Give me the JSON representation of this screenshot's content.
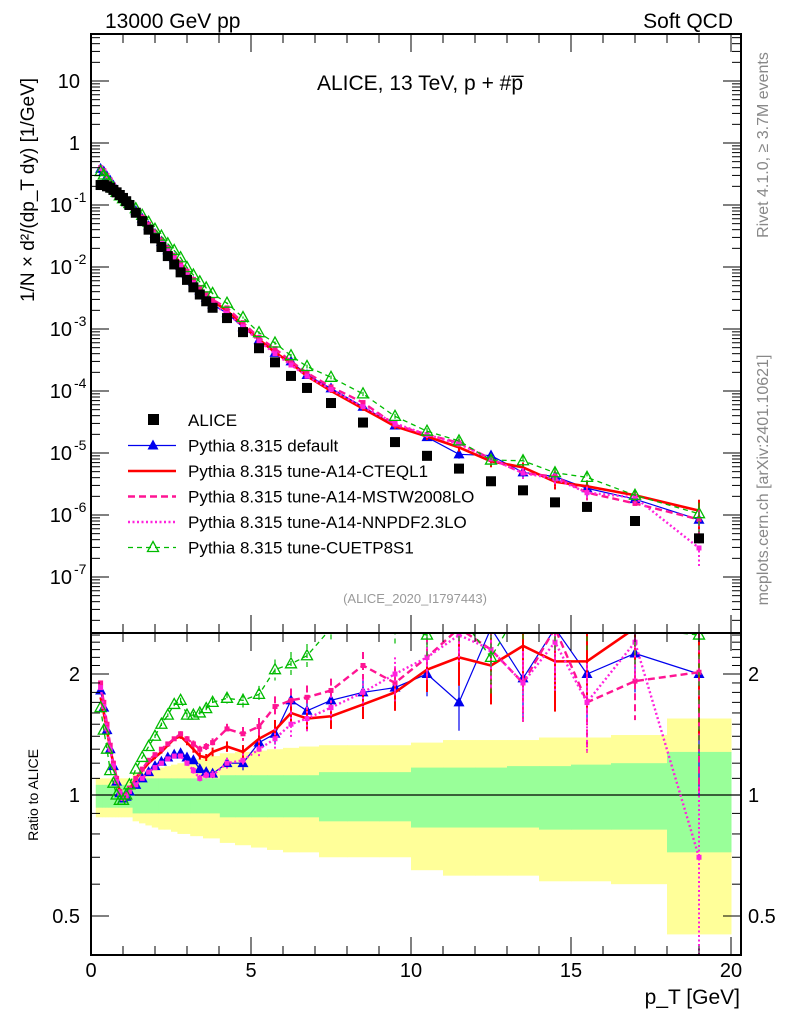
{
  "header": {
    "left": "13000 GeV pp",
    "right": "Soft QCD"
  },
  "side_texts": {
    "rivet": "Rivet 4.1.0, ≥ 3.7M events",
    "mcplots": "mcplots.cern.ch [arXiv:2401.10621]"
  },
  "chart_data": {
    "type": "line",
    "title": "ALICE, 13 TeV, p + #bar{p}",
    "title_display": "ALICE, 13 TeV, p + #p̅",
    "analysis_id": "(ALICE_2020_I1797443)",
    "xlabel": "p_T [GeV]",
    "ylabel": "1/N × d²/(dp_T dy) [1/GeV]",
    "ratio_ylabel": "Ratio to ALICE",
    "xlim": [
      0,
      20.35
    ],
    "ylim": [
      1.2e-08,
      55
    ],
    "ratio_ylim": [
      0.4,
      2.53
    ],
    "yscale": "log",
    "x_ticks": [
      0,
      5,
      10,
      15,
      20
    ],
    "y_ticks": [
      {
        "v": 10,
        "label": "10"
      },
      {
        "v": 1,
        "label": "1"
      },
      {
        "v": 0.1,
        "label": "10",
        "exp": "-1"
      },
      {
        "v": 0.01,
        "label": "10",
        "exp": "-2"
      },
      {
        "v": 0.001,
        "label": "10",
        "exp": "-3"
      },
      {
        "v": 0.0001,
        "label": "10",
        "exp": "-4"
      },
      {
        "v": 1e-05,
        "label": "10",
        "exp": "-5"
      },
      {
        "v": 1e-06,
        "label": "10",
        "exp": "-6"
      },
      {
        "v": 1e-07,
        "label": "10",
        "exp": "-7"
      }
    ],
    "ratio_ticks": [
      {
        "v": 2,
        "label": "2"
      },
      {
        "v": 1,
        "label": "1"
      },
      {
        "v": 0.5,
        "label": "0.5"
      }
    ],
    "legend_position": "bottom-left",
    "x": [
      0.3,
      0.4,
      0.5,
      0.6,
      0.7,
      0.8,
      0.9,
      1.0,
      1.1,
      1.2,
      1.4,
      1.6,
      1.8,
      2.0,
      2.2,
      2.4,
      2.6,
      2.8,
      3.0,
      3.2,
      3.4,
      3.6,
      3.8,
      4.25,
      4.75,
      5.25,
      5.75,
      6.25,
      6.75,
      7.5,
      8.5,
      9.5,
      10.5,
      11.5,
      12.5,
      13.5,
      14.5,
      15.5,
      17,
      19
    ],
    "data": {
      "name": "ALICE",
      "color": "#000000",
      "values": [
        0.21,
        0.21,
        0.2,
        0.19,
        0.175,
        0.16,
        0.145,
        0.13,
        0.115,
        0.1,
        0.075,
        0.055,
        0.04,
        0.029,
        0.021,
        0.015,
        0.011,
        0.0082,
        0.0062,
        0.0047,
        0.0036,
        0.0028,
        0.0022,
        0.0015,
        0.00089,
        0.00049,
        0.00029,
        0.000175,
        0.000112,
        6.4e-05,
        3.1e-05,
        1.5e-05,
        9e-06,
        5.6e-06,
        3.5e-06,
        2.5e-06,
        1.6e-06,
        1.35e-06,
        8e-07,
        4.2e-07
      ]
    },
    "uncertainty_bands": {
      "inner": {
        "color": "#99ff99",
        "hi": [
          1.06,
          1.06,
          1.06,
          1.06,
          1.06,
          1.06,
          1.06,
          1.06,
          1.06,
          1.06,
          1.1,
          1.1,
          1.1,
          1.1,
          1.1,
          1.1,
          1.1,
          1.1,
          1.1,
          1.1,
          1.1,
          1.1,
          1.1,
          1.12,
          1.12,
          1.12,
          1.12,
          1.12,
          1.12,
          1.14,
          1.14,
          1.14,
          1.17,
          1.17,
          1.17,
          1.18,
          1.18,
          1.19,
          1.2,
          1.28
        ],
        "lo": [
          0.93,
          0.93,
          0.93,
          0.93,
          0.93,
          0.93,
          0.93,
          0.93,
          0.93,
          0.93,
          0.9,
          0.9,
          0.9,
          0.9,
          0.9,
          0.9,
          0.9,
          0.9,
          0.9,
          0.9,
          0.9,
          0.9,
          0.9,
          0.88,
          0.88,
          0.88,
          0.88,
          0.88,
          0.88,
          0.86,
          0.86,
          0.86,
          0.83,
          0.83,
          0.83,
          0.83,
          0.82,
          0.82,
          0.82,
          0.72
        ]
      },
      "outer": {
        "color": "#ffff99",
        "hi": [
          1.1,
          1.1,
          1.1,
          1.1,
          1.1,
          1.1,
          1.1,
          1.1,
          1.1,
          1.1,
          1.13,
          1.14,
          1.15,
          1.16,
          1.17,
          1.18,
          1.19,
          1.2,
          1.21,
          1.22,
          1.23,
          1.24,
          1.25,
          1.27,
          1.28,
          1.29,
          1.3,
          1.31,
          1.32,
          1.33,
          1.33,
          1.33,
          1.35,
          1.37,
          1.37,
          1.37,
          1.39,
          1.39,
          1.41,
          1.55
        ],
        "lo": [
          0.88,
          0.88,
          0.88,
          0.88,
          0.88,
          0.88,
          0.88,
          0.88,
          0.88,
          0.88,
          0.86,
          0.85,
          0.84,
          0.83,
          0.82,
          0.82,
          0.81,
          0.8,
          0.8,
          0.79,
          0.79,
          0.78,
          0.78,
          0.76,
          0.75,
          0.74,
          0.73,
          0.72,
          0.72,
          0.7,
          0.7,
          0.7,
          0.65,
          0.63,
          0.63,
          0.63,
          0.61,
          0.61,
          0.6,
          0.45
        ]
      }
    },
    "mc_rel_error": [
      0,
      0,
      0,
      0,
      0,
      0,
      0,
      0,
      0,
      0,
      0,
      0,
      0,
      0.01,
      0.01,
      0.01,
      0.01,
      0.015,
      0.015,
      0.02,
      0.02,
      0.02,
      0.025,
      0.03,
      0.04,
      0.05,
      0.06,
      0.07,
      0.07,
      0.07,
      0.08,
      0.1,
      0.12,
      0.15,
      0.2,
      0.2,
      0.25,
      0.25,
      0.2,
      0.5
    ],
    "series": [
      {
        "name": "Pythia 8.315 default",
        "color": "#0000ee",
        "style": "solid",
        "width": 1.2,
        "marker": "triangle-filled",
        "ratio": [
          1.82,
          1.65,
          1.45,
          1.3,
          1.18,
          1.08,
          1.01,
          0.98,
          0.99,
          1.02,
          1.06,
          1.1,
          1.14,
          1.18,
          1.21,
          1.24,
          1.26,
          1.27,
          1.24,
          1.22,
          1.16,
          1.14,
          1.13,
          1.2,
          1.2,
          1.35,
          1.42,
          1.72,
          1.62,
          1.72,
          1.8,
          1.85,
          2.0,
          1.7,
          2.6,
          1.95,
          2.6,
          2.0,
          2.25,
          2.0
        ]
      },
      {
        "name": "Pythia 8.315 tune-A14-CTEQL1",
        "color": "#ff0000",
        "style": "solid",
        "width": 2.6,
        "marker": "none",
        "ratio": [
          1.75,
          1.6,
          1.45,
          1.3,
          1.2,
          1.1,
          1.02,
          0.99,
          1.0,
          1.03,
          1.1,
          1.15,
          1.2,
          1.24,
          1.28,
          1.33,
          1.38,
          1.4,
          1.35,
          1.3,
          1.25,
          1.24,
          1.28,
          1.32,
          1.28,
          1.38,
          1.45,
          1.6,
          1.55,
          1.57,
          1.68,
          1.8,
          2.05,
          2.2,
          2.1,
          2.35,
          2.15,
          2.15,
          2.6,
          2.8
        ]
      },
      {
        "name": "Pythia 8.315 tune-A14-MSTW2008LO",
        "color": "#ff1493",
        "style": "dashed",
        "width": 2.4,
        "marker": "square-small",
        "ratio": [
          1.9,
          1.7,
          1.5,
          1.33,
          1.2,
          1.1,
          1.02,
          0.99,
          1.0,
          1.04,
          1.1,
          1.16,
          1.22,
          1.26,
          1.3,
          1.34,
          1.38,
          1.42,
          1.38,
          1.34,
          1.3,
          1.32,
          1.35,
          1.46,
          1.42,
          1.48,
          1.66,
          1.72,
          1.75,
          1.82,
          2.1,
          1.9,
          2.2,
          2.6,
          2.3,
          1.9,
          2.6,
          1.7,
          1.92,
          2.02
        ]
      },
      {
        "name": "Pythia 8.315 tune-A14-NNPDF2.3LO",
        "color": "#ff22dd",
        "style": "dotted",
        "width": 2.4,
        "marker": "square-small",
        "ratio": [
          1.85,
          1.66,
          1.46,
          1.3,
          1.18,
          1.08,
          1.01,
          0.98,
          0.99,
          1.02,
          1.06,
          1.1,
          1.14,
          1.17,
          1.2,
          1.23,
          1.25,
          1.25,
          1.2,
          1.15,
          1.1,
          1.12,
          1.12,
          1.2,
          1.22,
          1.3,
          1.38,
          1.5,
          1.55,
          1.65,
          1.8,
          2.0,
          2.2,
          2.5,
          2.3,
          1.9,
          2.4,
          1.7,
          2.4,
          0.7
        ]
      },
      {
        "name": "Pythia 8.315 tune-CUETP8S1",
        "color": "#00bb00",
        "style": "dashed-fine",
        "width": 1.3,
        "marker": "triangle-open",
        "ratio": [
          1.65,
          1.45,
          1.3,
          1.15,
          1.07,
          1.0,
          0.97,
          0.97,
          1.0,
          1.06,
          1.16,
          1.24,
          1.32,
          1.4,
          1.5,
          1.58,
          1.68,
          1.72,
          1.58,
          1.58,
          1.6,
          1.64,
          1.7,
          1.74,
          1.72,
          1.78,
          2.05,
          2.12,
          2.22,
          2.6,
          2.9,
          2.6,
          2.5,
          2.8,
          2.2,
          3.0,
          3.0,
          3.0,
          2.6,
          2.5
        ]
      }
    ]
  }
}
